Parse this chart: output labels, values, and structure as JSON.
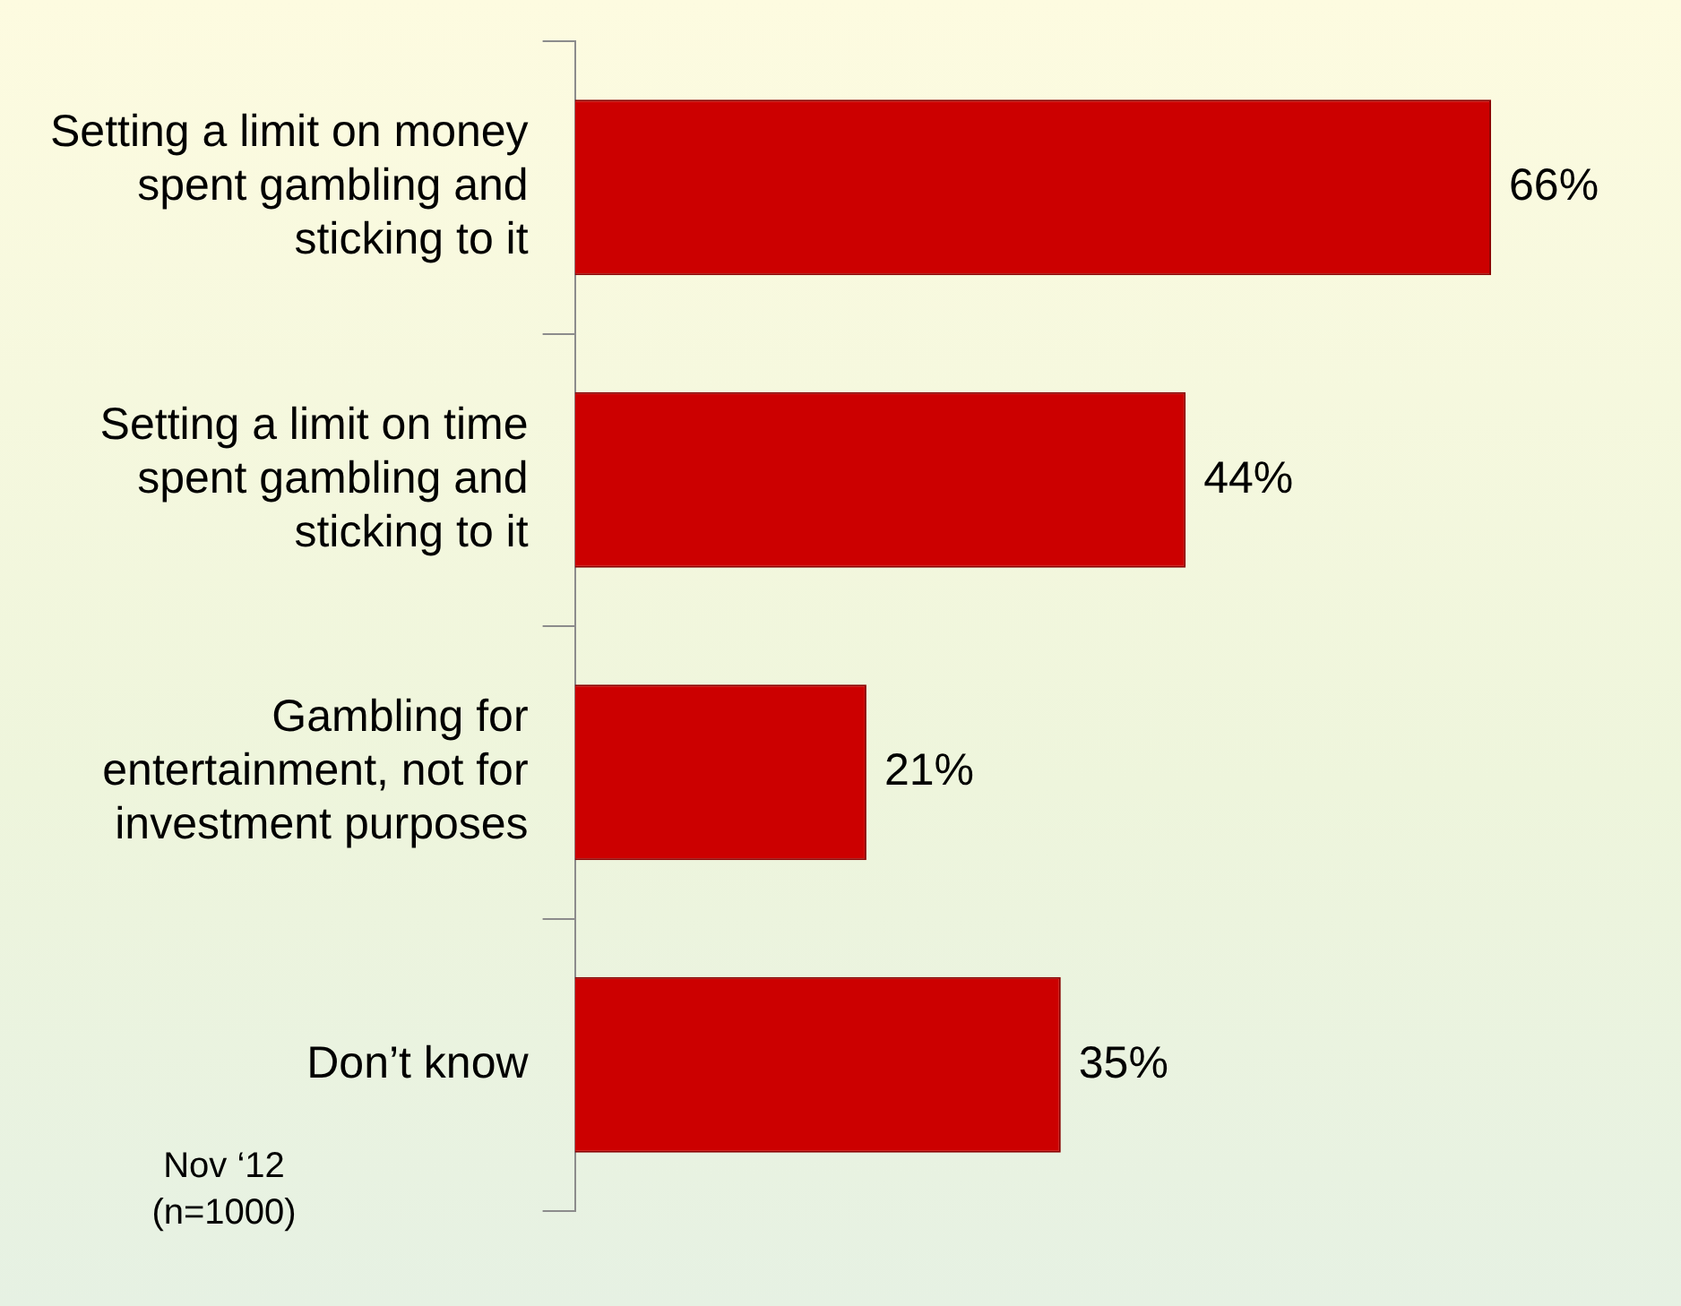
{
  "chart_data": {
    "type": "bar",
    "orientation": "horizontal",
    "categories": [
      "Setting a limit on money spent gambling and sticking to it",
      "Setting a limit on time spent gambling and sticking to it",
      "Gambling for entertainment, not for investment purposes",
      "Don’t know"
    ],
    "values": [
      66,
      44,
      21,
      35
    ],
    "value_labels": [
      "66%",
      "44%",
      "21%",
      "35%"
    ],
    "color": "#cc0000",
    "legend": false,
    "grid": false,
    "tick_labels": "y",
    "annotations": [
      "Nov ‘12\n(n=1000)"
    ]
  }
}
